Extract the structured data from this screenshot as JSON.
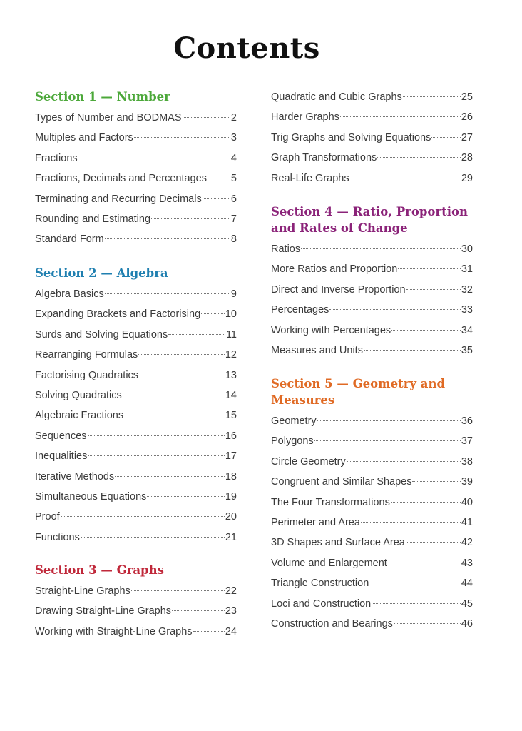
{
  "title": "Contents",
  "colors": {
    "section1": "#4ca83a",
    "section2": "#1f7fb0",
    "section3": "#c0283a",
    "section4": "#8b2379",
    "section5": "#e06a24"
  },
  "sections": [
    {
      "heading": "Section 1 — Number",
      "items": [
        {
          "label": "Types of Number and BODMAS",
          "page": "2"
        },
        {
          "label": "Multiples and Factors",
          "page": "3"
        },
        {
          "label": "Fractions",
          "page": "4"
        },
        {
          "label": "Fractions, Decimals and Percentages",
          "page": "5"
        },
        {
          "label": "Terminating and Recurring Decimals",
          "page": "6"
        },
        {
          "label": "Rounding and Estimating",
          "page": "7"
        },
        {
          "label": "Standard Form",
          "page": "8"
        }
      ]
    },
    {
      "heading": "Section 2 — Algebra",
      "items": [
        {
          "label": "Algebra Basics",
          "page": "9"
        },
        {
          "label": "Expanding Brackets and Factorising",
          "page": "10"
        },
        {
          "label": "Surds and Solving Equations",
          "page": "11"
        },
        {
          "label": "Rearranging Formulas",
          "page": "12"
        },
        {
          "label": "Factorising Quadratics",
          "page": "13"
        },
        {
          "label": "Solving Quadratics",
          "page": "14"
        },
        {
          "label": "Algebraic Fractions",
          "page": "15"
        },
        {
          "label": "Sequences",
          "page": "16"
        },
        {
          "label": "Inequalities",
          "page": "17"
        },
        {
          "label": "Iterative Methods",
          "page": "18"
        },
        {
          "label": "Simultaneous Equations",
          "page": "19"
        },
        {
          "label": "Proof",
          "page": "20"
        },
        {
          "label": "Functions",
          "page": "21"
        }
      ]
    },
    {
      "heading": "Section 3 — Graphs",
      "items": [
        {
          "label": "Straight-Line Graphs",
          "page": "22"
        },
        {
          "label": "Drawing Straight-Line Graphs",
          "page": "23"
        },
        {
          "label": "Working with Straight-Line Graphs",
          "page": "24"
        },
        {
          "label": "Quadratic and Cubic Graphs",
          "page": "25"
        },
        {
          "label": "Harder Graphs",
          "page": "26"
        },
        {
          "label": "Trig Graphs and Solving Equations",
          "page": "27"
        },
        {
          "label": "Graph Transformations",
          "page": "28"
        },
        {
          "label": "Real-Life Graphs",
          "page": "29"
        }
      ]
    },
    {
      "heading": "Section 4 — Ratio, Proportion and Rates of Change",
      "items": [
        {
          "label": "Ratios",
          "page": "30"
        },
        {
          "label": "More Ratios and Proportion",
          "page": "31"
        },
        {
          "label": "Direct and Inverse Proportion",
          "page": "32"
        },
        {
          "label": "Percentages",
          "page": "33"
        },
        {
          "label": "Working with Percentages",
          "page": "34"
        },
        {
          "label": "Measures and Units",
          "page": "35"
        }
      ]
    },
    {
      "heading": "Section 5 — Geometry and Measures",
      "items": [
        {
          "label": "Geometry",
          "page": "36"
        },
        {
          "label": "Polygons",
          "page": "37"
        },
        {
          "label": "Circle Geometry",
          "page": "38"
        },
        {
          "label": "Congruent and Similar Shapes",
          "page": "39"
        },
        {
          "label": "The Four Transformations",
          "page": "40"
        },
        {
          "label": "Perimeter and Area",
          "page": "41"
        },
        {
          "label": "3D Shapes and Surface Area",
          "page": "42"
        },
        {
          "label": "Volume and Enlargement",
          "page": "43"
        },
        {
          "label": "Triangle Construction",
          "page": "44"
        },
        {
          "label": "Loci and Construction",
          "page": "45"
        },
        {
          "label": "Construction and Bearings",
          "page": "46"
        }
      ]
    }
  ]
}
